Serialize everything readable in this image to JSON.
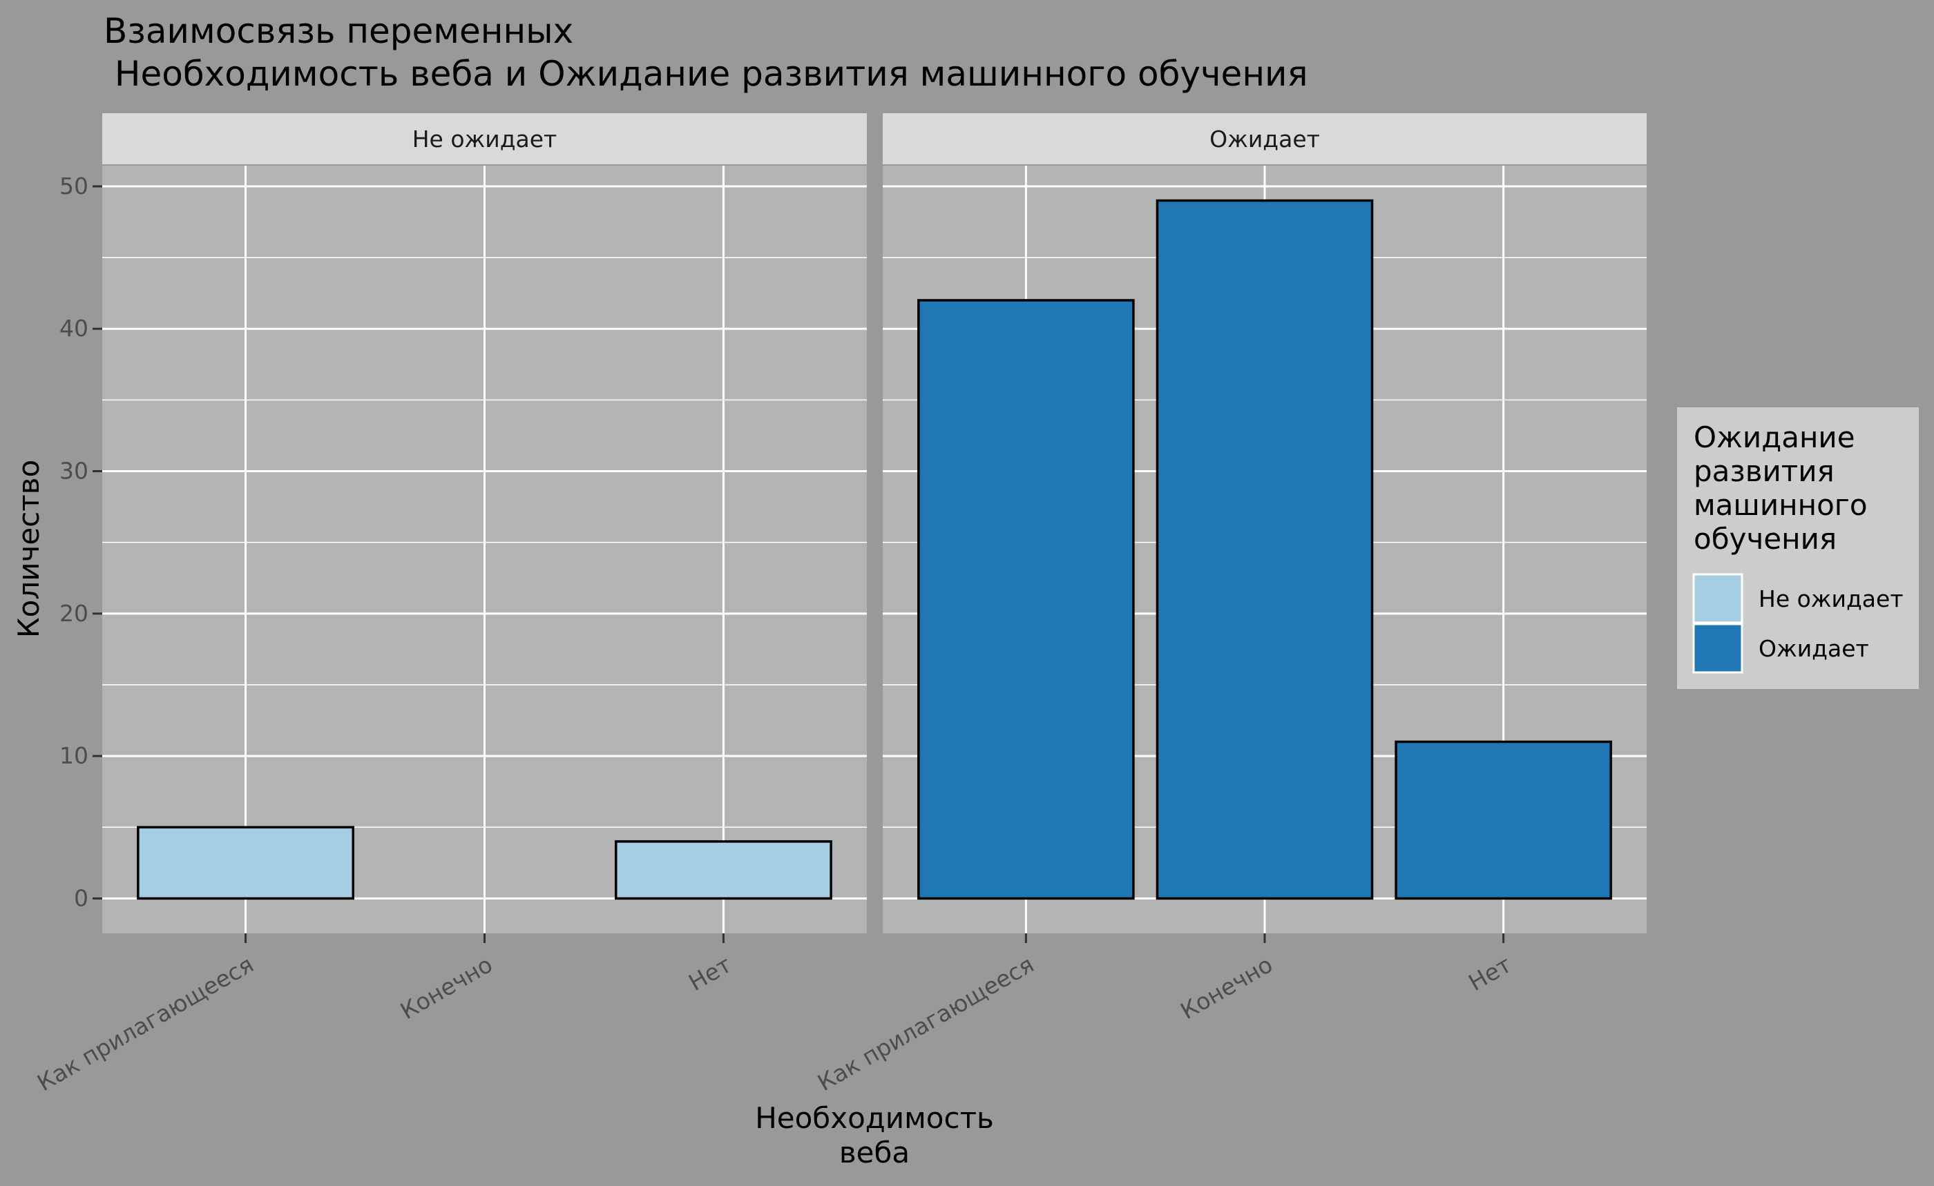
{
  "title_lines": [
    "Взаимосвязь переменных",
    " Необходимость веба и Ожидание развития машинного обучения"
  ],
  "chart_data": {
    "type": "bar",
    "title": "Взаимосвязь переменных\n Необходимость веба и Ожидание развития машинного обучения",
    "xlabel": "Необходимость\nвеба",
    "ylabel": "Количество",
    "categories": [
      "Как прилагающееся",
      "Конечно",
      "Нет"
    ],
    "facets": [
      {
        "label": "Не ожидает",
        "values": [
          5,
          0,
          4
        ]
      },
      {
        "label": "Ожидает",
        "values": [
          42,
          49,
          11
        ]
      }
    ],
    "ylim": [
      -2.45,
      51.45
    ],
    "yticks": [
      0,
      10,
      20,
      30,
      40,
      50
    ],
    "grid": true,
    "legend": {
      "title": "Ожидание\nразвития\nмашинного\nобучения",
      "entries": [
        "Не ожидает",
        "Ожидает"
      ],
      "placement": "right"
    }
  },
  "colors": {
    "figure_bg": "#999999",
    "panel_bg": "#B3B3B3",
    "strip_bg": "#D9D9D9",
    "legend_bg": "#CCCCCC",
    "grid": "#FFFFFF",
    "bar_outline": "#000000",
    "fill_not_expecting": "#A6CEE3",
    "fill_expecting": "#1F78B4"
  }
}
